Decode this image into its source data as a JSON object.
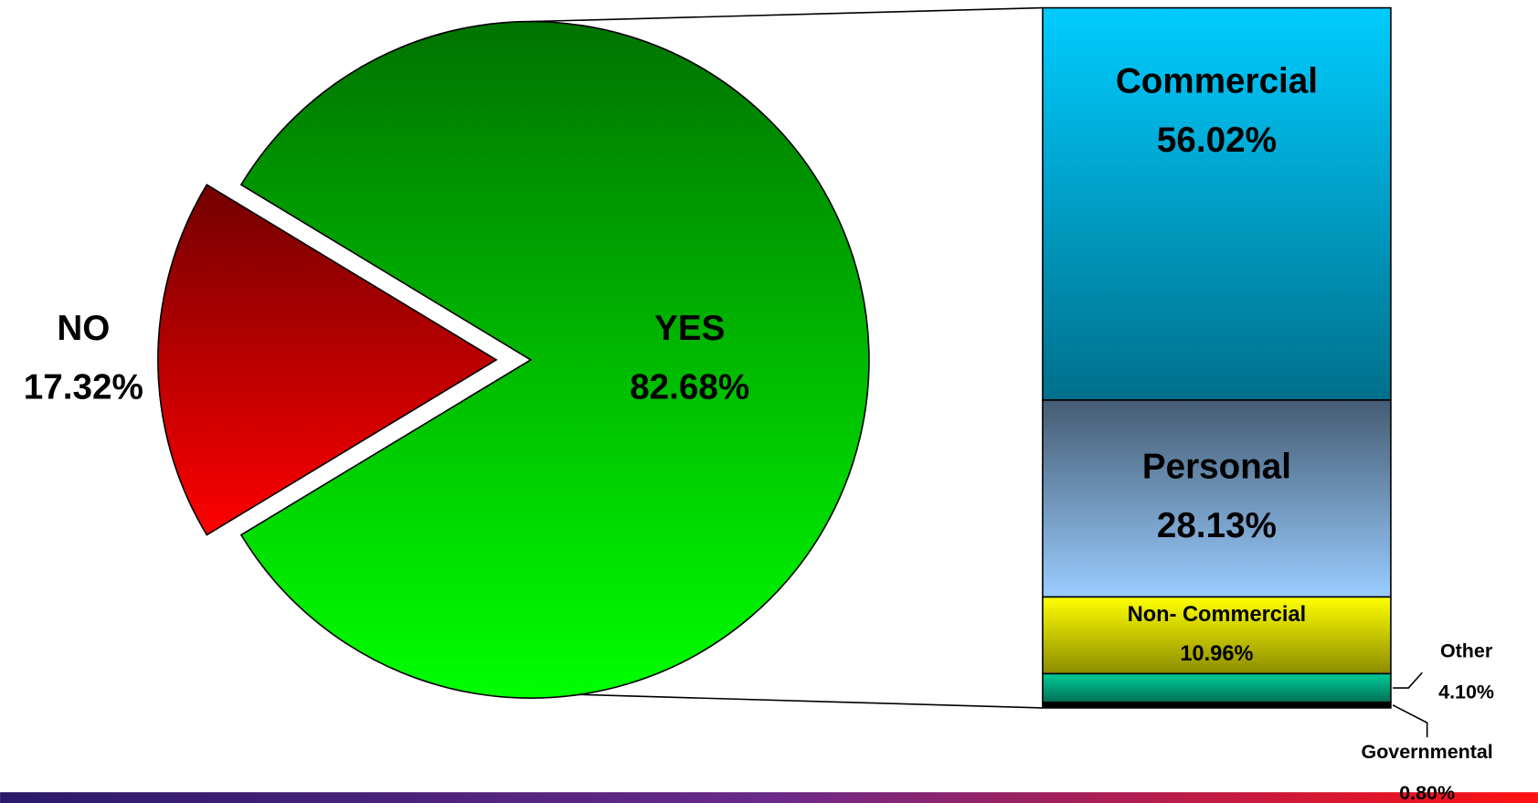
{
  "chart_data": [
    {
      "type": "pie",
      "categories": [
        "NO",
        "YES"
      ],
      "values": [
        17.32,
        82.68
      ],
      "value_labels": [
        "17.32%",
        "82.68%"
      ],
      "colors": [
        "#ff0000",
        "#00ff00"
      ]
    },
    {
      "type": "stacked-bar",
      "categories": [
        "Commercial",
        "Personal",
        "Non- Commercial",
        "Other",
        "Governmental"
      ],
      "values": [
        56.02,
        28.13,
        10.96,
        4.1,
        0.8
      ],
      "value_labels": [
        "56.02%",
        "28.13%",
        "10.96%",
        "4.10%",
        "0.80%"
      ],
      "colors": [
        "#00ccff",
        "#99ccff",
        "#ffff00",
        "#00cc99",
        "#000000"
      ]
    }
  ]
}
